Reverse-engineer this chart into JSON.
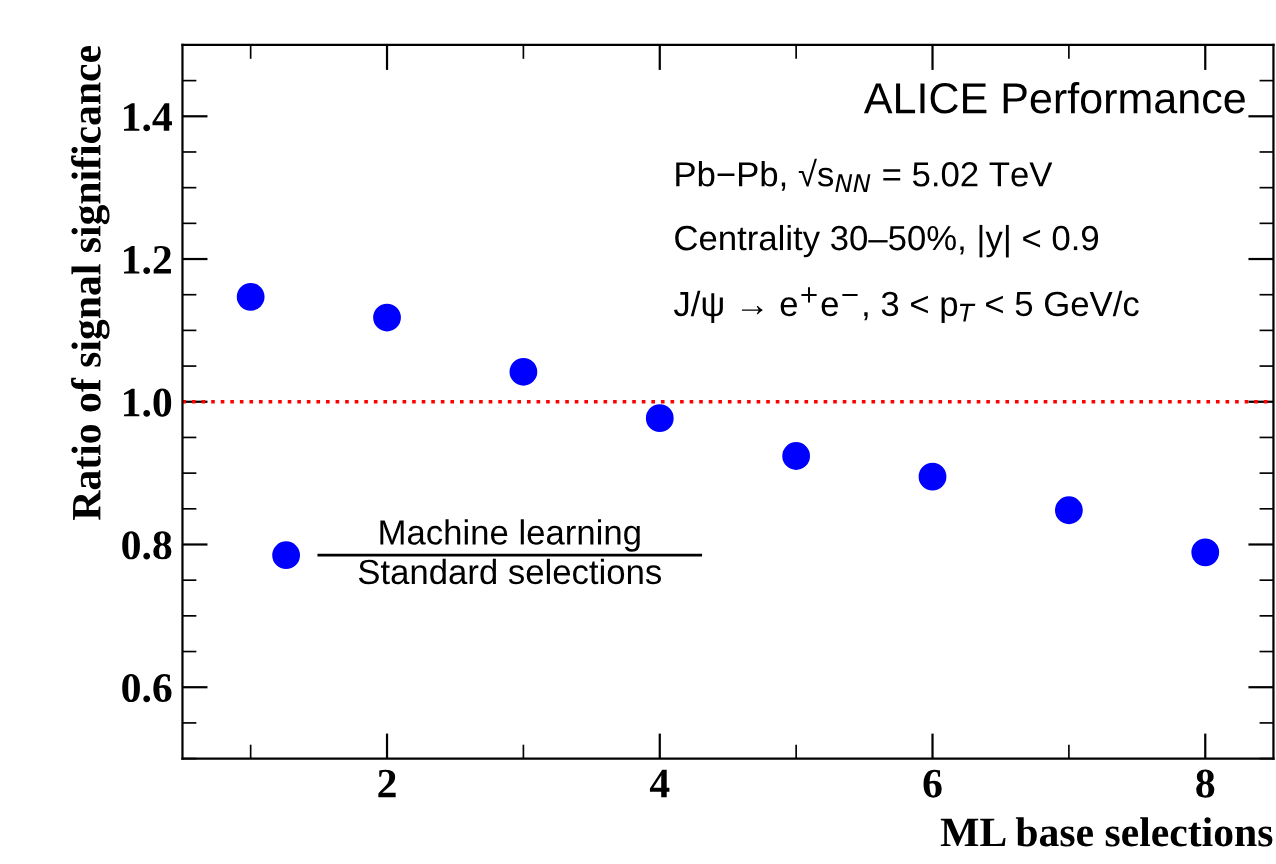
{
  "chart_data": {
    "type": "scatter",
    "xlabel": "ML base selections",
    "ylabel": "Ratio of signal significance",
    "x": [
      1,
      2,
      3,
      4,
      5,
      6,
      7,
      8
    ],
    "series": [
      {
        "name": "Machine learning\nStandard selections",
        "color": "#0000ff",
        "values": [
          1.147,
          1.118,
          1.042,
          0.977,
          0.924,
          0.895,
          0.848,
          0.789
        ]
      }
    ],
    "marker": "circle",
    "xlim": [
      0.5,
      8.5
    ],
    "xticks": [
      2,
      4,
      6,
      8
    ],
    "ylim": [
      0.5,
      1.5
    ],
    "yticks": [
      0.6,
      0.8,
      {
        "value": 1.0,
        "label": "1.0"
      },
      1.2,
      1.4
    ],
    "ref_lines": [
      {
        "axis": "y",
        "value": 1.0,
        "color": "#ff0000",
        "line_style": "dotted"
      }
    ],
    "annotations": [
      "ALICE Performance",
      "Pb−Pb, √s$_{NN}$ = 5.02 TeV",
      "Centrality 30–50%, |y| < 0.9",
      "J/ψ → e$^{+}$e$^{−}$, 3 < p$_{T}$ < 5 GeV/c"
    ],
    "legend": "bottom left",
    "grid": false
  }
}
